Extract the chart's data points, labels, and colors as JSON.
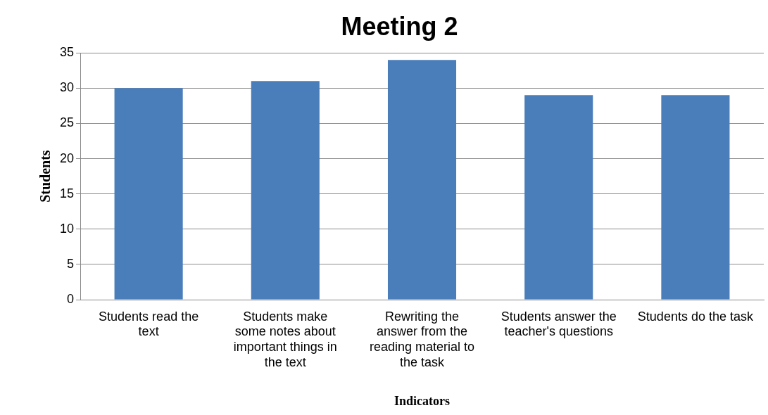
{
  "chart_data": {
    "type": "bar",
    "title": "Meeting 2",
    "xlabel": "Indicators",
    "ylabel": "Students",
    "categories": [
      "Students read the text",
      "Students make some notes about important things in the text",
      "Rewriting the answer from the reading material to the task",
      "Students answer the teacher's questions",
      "Students do the task"
    ],
    "values": [
      30,
      31,
      34,
      29,
      29
    ],
    "color": "#4a7ebb",
    "ylim": [
      0,
      35
    ],
    "yticks": [
      0,
      5,
      10,
      15,
      20,
      25,
      30,
      35
    ],
    "grid": "y",
    "legend": false
  }
}
